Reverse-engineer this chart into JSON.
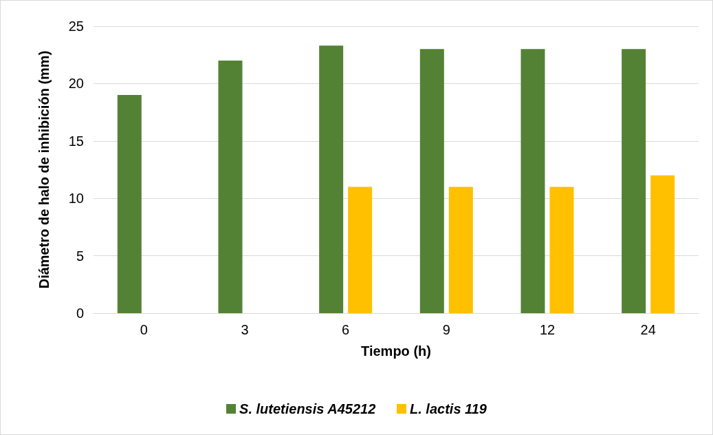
{
  "chart_data": {
    "type": "bar",
    "xlabel": "Tiempo (h)",
    "ylabel": "Diámetro de halo de inhibición (mm)",
    "categories": [
      "0",
      "3",
      "6",
      "9",
      "12",
      "24"
    ],
    "series": [
      {
        "name": "S. lutetiensis A45212",
        "color": "#548235",
        "values": [
          19,
          22,
          23.3,
          23,
          23,
          23
        ]
      },
      {
        "name": "L. lactis 119",
        "color": "#ffc000",
        "values": [
          null,
          null,
          11,
          11,
          11,
          12
        ]
      }
    ],
    "ylim": [
      0,
      25
    ],
    "yticks": [
      0,
      5,
      10,
      15,
      20,
      25
    ],
    "grid": "y",
    "legend": "bottom"
  }
}
